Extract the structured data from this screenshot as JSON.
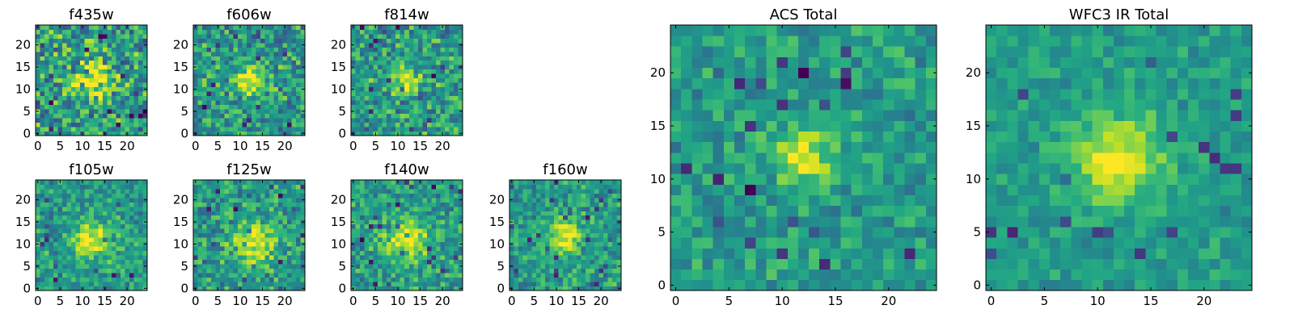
{
  "figure": {
    "colormap": "viridis",
    "background": "#ffffff"
  },
  "chart_data": [
    {
      "type": "heatmap",
      "title": "f435w",
      "xticks": [
        0,
        5,
        10,
        15,
        20
      ],
      "yticks": [
        0,
        5,
        10,
        15,
        20
      ],
      "xlim": [
        -0.5,
        24.5
      ],
      "ylim": [
        -0.5,
        24.5
      ],
      "grid": false,
      "source_center": [
        12,
        12
      ],
      "source_width": 3.0,
      "noise": 0.55,
      "seed": 11
    },
    {
      "type": "heatmap",
      "title": "f606w",
      "xticks": [
        0,
        5,
        10,
        15,
        20
      ],
      "yticks": [
        0,
        5,
        10,
        15,
        20
      ],
      "xlim": [
        -0.5,
        24.5
      ],
      "ylim": [
        -0.5,
        24.5
      ],
      "grid": false,
      "source_center": [
        12,
        12
      ],
      "source_width": 2.2,
      "noise": 0.45,
      "seed": 23
    },
    {
      "type": "heatmap",
      "title": "f814w",
      "xticks": [
        0,
        5,
        10,
        15,
        20
      ],
      "yticks": [
        0,
        5,
        10,
        15,
        20
      ],
      "xlim": [
        -0.5,
        24.5
      ],
      "ylim": [
        -0.5,
        24.5
      ],
      "grid": false,
      "source_center": [
        12,
        12
      ],
      "source_width": 2.0,
      "noise": 0.45,
      "seed": 37
    },
    {
      "type": "heatmap",
      "title": "f105w",
      "xticks": [
        0,
        5,
        10,
        15,
        20
      ],
      "yticks": [
        0,
        5,
        10,
        15,
        20
      ],
      "xlim": [
        -0.5,
        24.5
      ],
      "ylim": [
        -0.5,
        24.5
      ],
      "grid": false,
      "source_center": [
        12,
        11
      ],
      "source_width": 2.8,
      "noise": 0.35,
      "seed": 41
    },
    {
      "type": "heatmap",
      "title": "f125w",
      "xticks": [
        0,
        5,
        10,
        15,
        20
      ],
      "yticks": [
        0,
        5,
        10,
        15,
        20
      ],
      "xlim": [
        -0.5,
        24.5
      ],
      "ylim": [
        -0.5,
        24.5
      ],
      "grid": false,
      "source_center": [
        13,
        10
      ],
      "source_width": 3.2,
      "noise": 0.4,
      "seed": 53
    },
    {
      "type": "heatmap",
      "title": "f140w",
      "xticks": [
        0,
        5,
        10,
        15,
        20
      ],
      "yticks": [
        0,
        5,
        10,
        15,
        20
      ],
      "xlim": [
        -0.5,
        24.5
      ],
      "ylim": [
        -0.5,
        24.5
      ],
      "grid": false,
      "source_center": [
        12,
        11
      ],
      "source_width": 3.2,
      "noise": 0.38,
      "seed": 67
    },
    {
      "type": "heatmap",
      "title": "f160w",
      "xticks": [
        0,
        5,
        10,
        15,
        20
      ],
      "yticks": [
        0,
        5,
        10,
        15,
        20
      ],
      "xlim": [
        -0.5,
        24.5
      ],
      "ylim": [
        -0.5,
        24.5
      ],
      "grid": false,
      "source_center": [
        12,
        12
      ],
      "source_width": 2.6,
      "noise": 0.35,
      "seed": 79
    },
    {
      "type": "heatmap",
      "title": "ACS Total",
      "xticks": [
        0,
        5,
        10,
        15,
        20
      ],
      "yticks": [
        0,
        5,
        10,
        15,
        20
      ],
      "xlim": [
        -0.5,
        24.5
      ],
      "ylim": [
        -0.5,
        24.5
      ],
      "grid": false,
      "source_center": [
        12,
        12
      ],
      "source_width": 1.8,
      "noise": 0.3,
      "seed": 97
    },
    {
      "type": "heatmap",
      "title": "WFC3 IR Total",
      "xticks": [
        0,
        5,
        10,
        15,
        20
      ],
      "yticks": [
        0,
        5,
        10,
        15,
        20
      ],
      "xlim": [
        -0.5,
        24.5
      ],
      "ylim": [
        -0.5,
        24.5
      ],
      "grid": false,
      "source_center": [
        12,
        12
      ],
      "source_width": 2.8,
      "noise": 0.22,
      "seed": 101
    }
  ]
}
